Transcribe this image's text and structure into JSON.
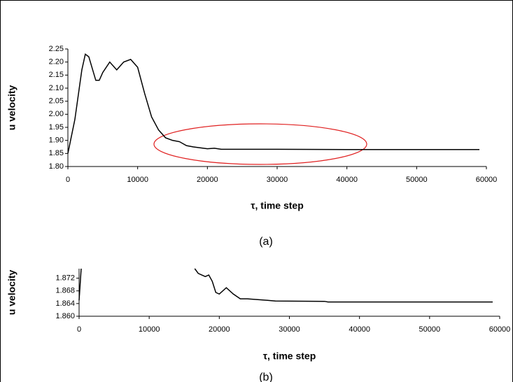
{
  "chart_data": [
    {
      "type": "line",
      "x_label": "τ, time step",
      "y_label": "u velocity",
      "caption": "(a)",
      "xlim": [
        0,
        60000
      ],
      "xticks": [
        0,
        10000,
        20000,
        30000,
        40000,
        50000,
        60000
      ],
      "ylim": [
        1.8,
        2.25
      ],
      "yticks": [
        {
          "value": 1.8,
          "label": "1.80"
        },
        1.85,
        {
          "value": 1.9,
          "label": "1.90"
        },
        1.95,
        {
          "value": 2.0,
          "label": "2.00"
        },
        2.05,
        {
          "value": 2.1,
          "label": "2.10"
        },
        2.15,
        {
          "value": 2.2,
          "label": "2.20"
        },
        2.25
      ],
      "series": [
        {
          "color": "#000000",
          "x": [
            0,
            1000,
            2000,
            2500,
            3000,
            4000,
            4500,
            5000,
            6000,
            7000,
            8000,
            9000,
            10000,
            11000,
            12000,
            13000,
            14000,
            15000,
            16000,
            17000,
            18000,
            20000,
            21000,
            22000,
            30000,
            40000,
            59000
          ],
          "values": [
            1.85,
            1.98,
            2.17,
            2.23,
            2.22,
            2.13,
            2.13,
            2.16,
            2.2,
            2.17,
            2.2,
            2.21,
            2.18,
            2.08,
            1.99,
            1.94,
            1.91,
            1.9,
            1.895,
            1.88,
            1.875,
            1.868,
            1.87,
            1.866,
            1.866,
            1.865,
            1.865
          ]
        }
      ]
    },
    {
      "type": "line",
      "x_label": "τ, time step",
      "y_label": "u velocity",
      "caption": "(b)",
      "xlim": [
        0,
        60000
      ],
      "xticks": [
        0,
        10000,
        20000,
        30000,
        40000,
        50000,
        60000
      ],
      "ylim": [
        1.86,
        1.875
      ],
      "yticks": [
        {
          "value": 1.86,
          "label": "1.860"
        },
        1.864,
        1.868,
        1.872
      ],
      "series": [
        {
          "color": "#000000",
          "x": [
            0,
            300,
            10000,
            16500,
            17000,
            18000,
            18500,
            19000,
            19500,
            20000,
            21000,
            22000,
            23000,
            24000,
            27000,
            28000,
            35000,
            35500,
            59000
          ],
          "values": [
            1.865,
            1.875,
            null,
            1.875,
            1.8735,
            1.8725,
            1.873,
            1.871,
            1.8675,
            1.867,
            1.869,
            1.867,
            1.8655,
            1.8655,
            1.865,
            1.8648,
            1.8647,
            1.8645,
            1.8645
          ]
        }
      ]
    }
  ]
}
